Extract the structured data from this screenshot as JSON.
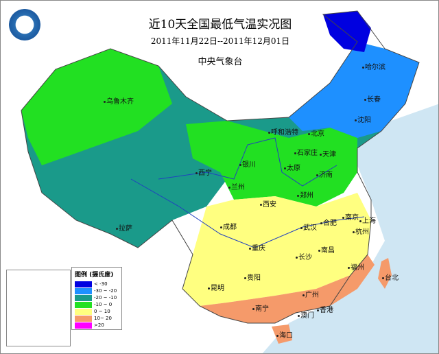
{
  "header": {
    "title": "近10天全国最低气温实况图",
    "date_range": "2011年11月22日--2011年12月01日",
    "agency": "中央气象台"
  },
  "legend": {
    "title": "图例 (摄氏度)",
    "items": [
      {
        "label": "< -30",
        "color": "#0000e0"
      },
      {
        "label": "-30 ~ -20",
        "color": "#1e90ff"
      },
      {
        "label": "-20 ~ -10",
        "color": "#1a9a8a"
      },
      {
        "label": "-10 ~ 0",
        "color": "#22e022"
      },
      {
        "label": "0 ~ 10",
        "color": "#ffff80"
      },
      {
        "label": "10~ 20",
        "color": "#f59a6a"
      },
      {
        "label": ">20",
        "color": "#ff00ff"
      }
    ]
  },
  "cities": [
    {
      "name": "哈尔滨"
    },
    {
      "name": "长春"
    },
    {
      "name": "沈阳"
    },
    {
      "name": "乌鲁木齐"
    },
    {
      "name": "呼和浩特"
    },
    {
      "name": "北京"
    },
    {
      "name": "天津"
    },
    {
      "name": "石家庄"
    },
    {
      "name": "太原"
    },
    {
      "name": "银川"
    },
    {
      "name": "西宁"
    },
    {
      "name": "兰州"
    },
    {
      "name": "济南"
    },
    {
      "name": "郑州"
    },
    {
      "name": "西安"
    },
    {
      "name": "合肥"
    },
    {
      "name": "南京"
    },
    {
      "name": "上海"
    },
    {
      "name": "杭州"
    },
    {
      "name": "武汉"
    },
    {
      "name": "成都"
    },
    {
      "name": "拉萨"
    },
    {
      "name": "重庆"
    },
    {
      "name": "长沙"
    },
    {
      "name": "南昌"
    },
    {
      "name": "贵阳"
    },
    {
      "name": "福州"
    },
    {
      "name": "台北"
    },
    {
      "name": "昆明"
    },
    {
      "name": "广州"
    },
    {
      "name": "南宁"
    },
    {
      "name": "澳门"
    },
    {
      "name": "香港"
    },
    {
      "name": "海口"
    }
  ],
  "sea_color": "#cfe6f3"
}
